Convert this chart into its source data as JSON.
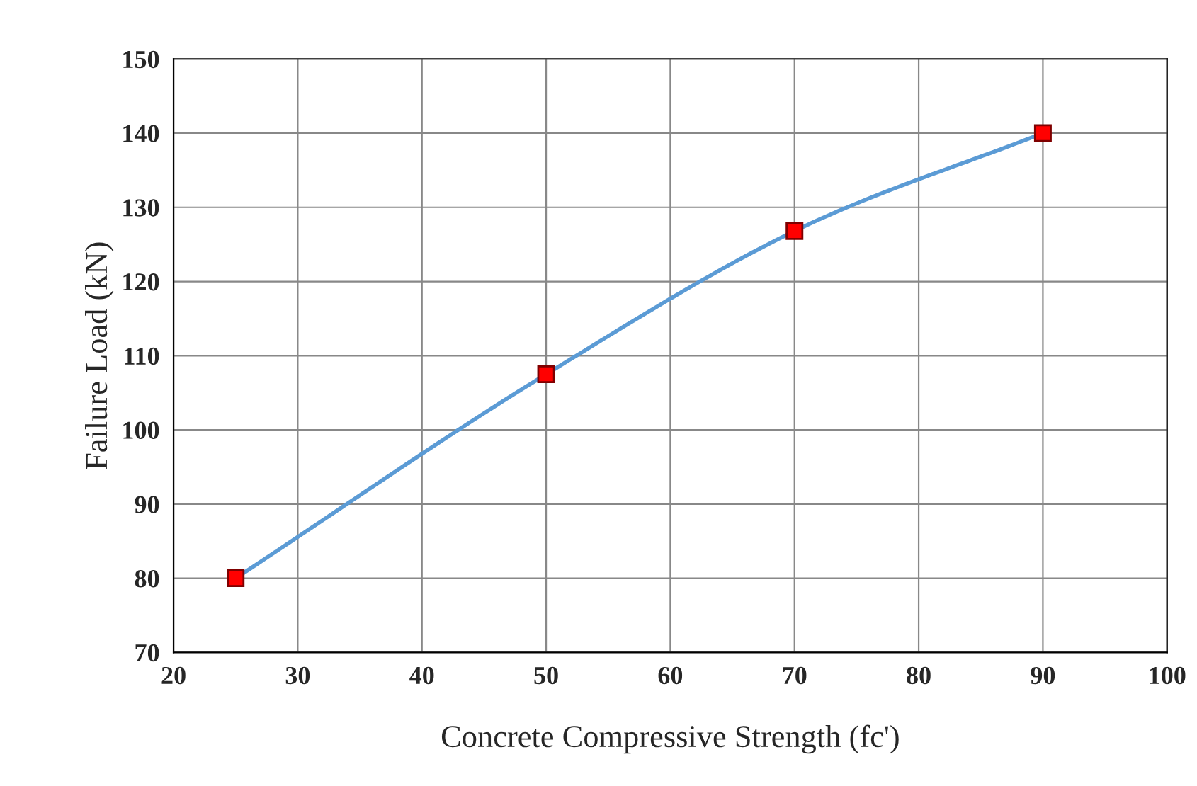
{
  "chart_data": {
    "type": "line",
    "xlabel": "Concrete Compressive Strength (fc')",
    "ylabel": "Failure Load (kN)",
    "x": [
      25,
      50,
      70,
      90
    ],
    "series": [
      {
        "color": "#5b9bd5",
        "colors": [
          "#ff0000",
          "#ff0000",
          "#ff0000",
          "#ff0000"
        ],
        "values": [
          80,
          107.5,
          126.8,
          140
        ]
      }
    ],
    "marker": "square",
    "xlim": [
      20,
      100
    ],
    "xticks": [
      20,
      30,
      40,
      50,
      60,
      70,
      80,
      90,
      100
    ],
    "ylim": [
      70,
      150
    ],
    "yticks": [
      70,
      80,
      90,
      100,
      110,
      120,
      130,
      140,
      150
    ],
    "grid": true
  }
}
